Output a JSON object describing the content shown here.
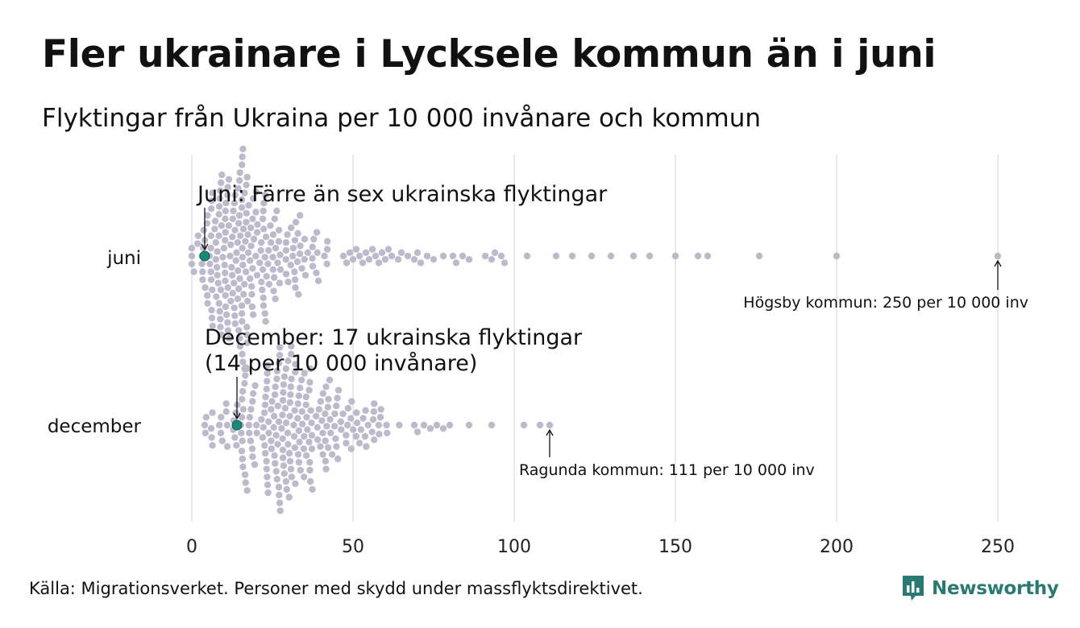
{
  "title": "Fler ukrainare i Lycksele kommun än i juni",
  "subtitle": "Flyktingar från Ukraina per 10 000 invånare och kommun",
  "source": "Källa: Migrationsverket. Personer med skydd under massflyktsdirektivet.",
  "brand": {
    "name": "Newsworthy",
    "icon": "newsworthy-logo-icon",
    "color": "#2a7a73"
  },
  "colors": {
    "dot": "#bcbacb",
    "highlight": "#1a8a78",
    "grid": "#d0d0d0"
  },
  "chart_data": {
    "type": "scatter",
    "subtype": "beeswarm",
    "xlim": [
      0,
      250
    ],
    "xticks": [
      "0",
      "50",
      "100",
      "150",
      "200",
      "250"
    ],
    "grid": true,
    "rows": [
      {
        "label": "juni",
        "bulk": {
          "count": 230,
          "min": 0,
          "mode": 10,
          "max": 46
        },
        "values": [
          0,
          0,
          0,
          47,
          48,
          49,
          50,
          51,
          52,
          53,
          54,
          55,
          56,
          57,
          58,
          59,
          60,
          61,
          62,
          64,
          65,
          67,
          69,
          70,
          71,
          73,
          75,
          78,
          81,
          82,
          84,
          86,
          91,
          93,
          94,
          96,
          97,
          104,
          113,
          118,
          124,
          130,
          137,
          142,
          150,
          157,
          160,
          176,
          200,
          250
        ],
        "highlight": {
          "value": 4,
          "annotation": "Juni: Färre än sex ukrainska flyktingar"
        },
        "outlier": {
          "value": 250,
          "annotation": "Högsby kommun: 250 per 10 000 inv"
        }
      },
      {
        "label": "december",
        "bulk": {
          "count": 225,
          "min": 4,
          "mode": 28,
          "max": 68
        },
        "values": [
          4,
          6,
          9,
          11,
          69,
          70,
          72,
          74,
          76,
          78,
          80,
          86,
          93,
          103,
          108,
          111
        ],
        "highlight": {
          "value": 14,
          "annotation_line1": "December: 17 ukrainska flyktingar",
          "annotation_line2": "(14 per 10 000 invånare)"
        },
        "outlier": {
          "value": 111,
          "annotation": "Ragunda kommun: 111 per 10 000 inv"
        }
      }
    ]
  }
}
